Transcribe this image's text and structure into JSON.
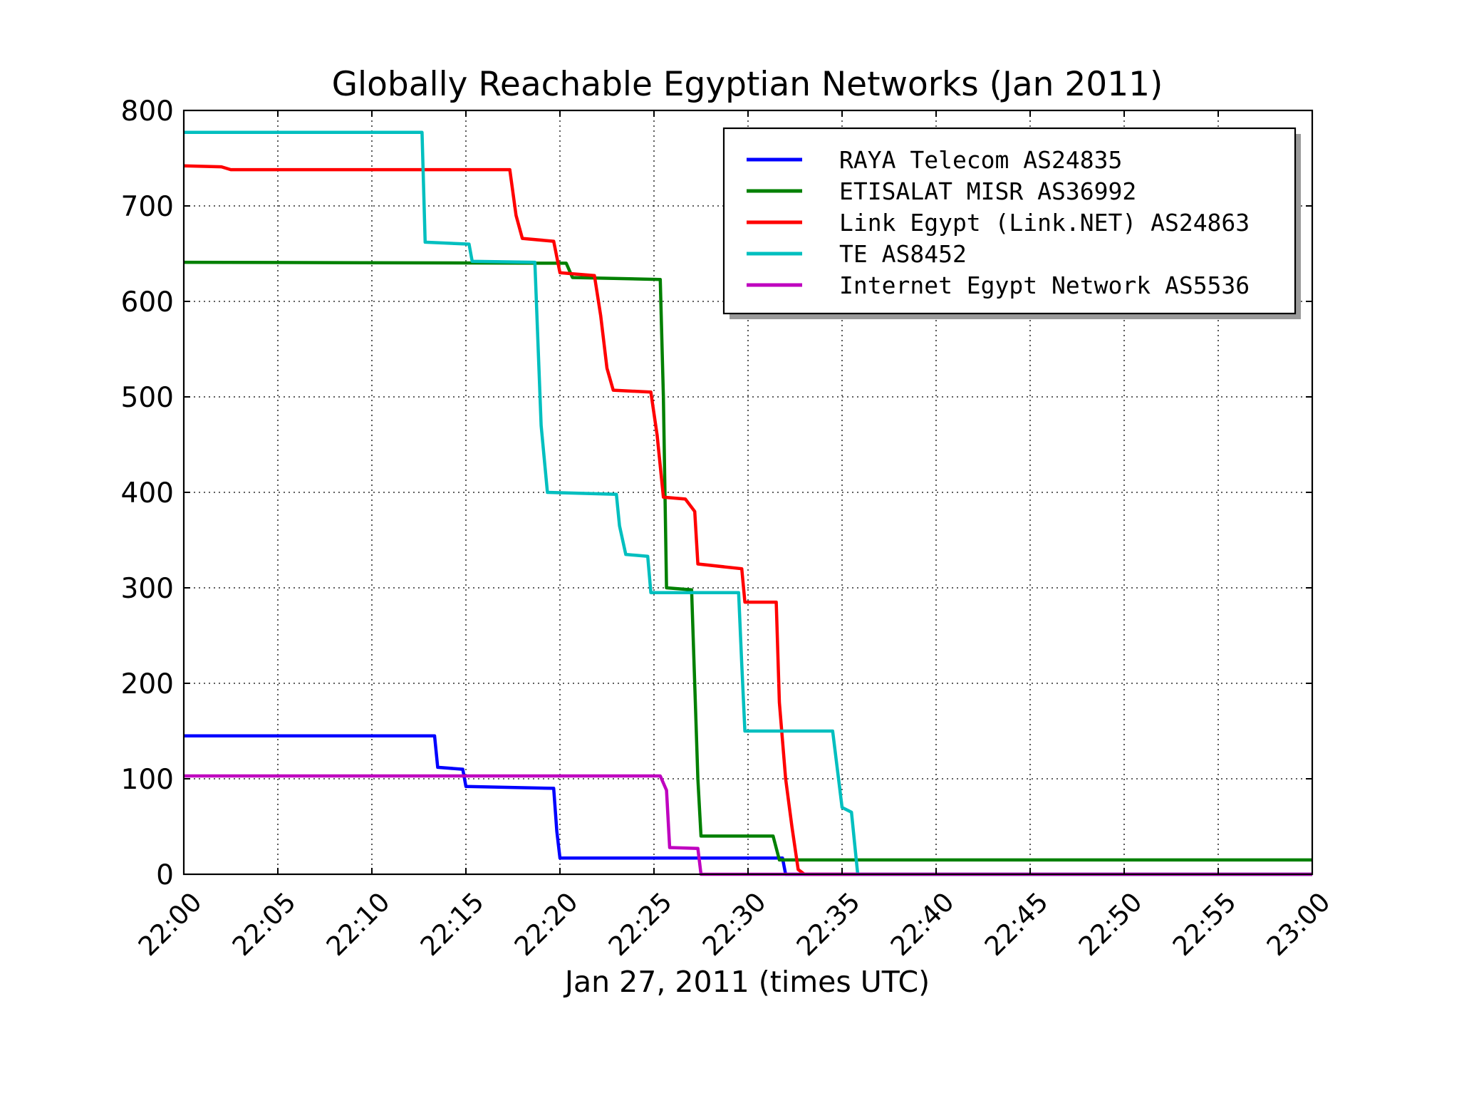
{
  "chart_data": {
    "type": "line",
    "title": "Globally Reachable Egyptian Networks (Jan 2011)",
    "xlabel": "Jan 27, 2011 (times UTC)",
    "ylabel": "",
    "xlim": [
      "22:00",
      "23:00"
    ],
    "ylim": [
      0,
      800
    ],
    "x_ticks": [
      "22:00",
      "22:05",
      "22:10",
      "22:15",
      "22:20",
      "22:25",
      "22:30",
      "22:35",
      "22:40",
      "22:45",
      "22:50",
      "22:55",
      "23:00"
    ],
    "y_ticks": [
      0,
      100,
      200,
      300,
      400,
      500,
      600,
      700,
      800
    ],
    "grid": true,
    "legend_position": "top-right",
    "series": [
      {
        "name": "RAYA Telecom AS24835",
        "color": "#0000ff",
        "points": [
          [
            "22:00",
            145
          ],
          [
            "22:13:20",
            145
          ],
          [
            "22:13:30",
            112
          ],
          [
            "22:14:50",
            110
          ],
          [
            "22:15:00",
            92
          ],
          [
            "22:19:40",
            90
          ],
          [
            "22:19:50",
            45
          ],
          [
            "22:20:00",
            17
          ],
          [
            "22:31:50",
            17
          ],
          [
            "22:32:00",
            0
          ],
          [
            "23:00",
            0
          ]
        ]
      },
      {
        "name": "ETISALAT MISR AS36992",
        "color": "#008000",
        "points": [
          [
            "22:00",
            641
          ],
          [
            "22:20:20",
            640
          ],
          [
            "22:20:40",
            625
          ],
          [
            "22:25:20",
            623
          ],
          [
            "22:25:30",
            500
          ],
          [
            "22:25:40",
            300
          ],
          [
            "22:27:00",
            298
          ],
          [
            "22:27:20",
            100
          ],
          [
            "22:27:30",
            40
          ],
          [
            "22:31:20",
            40
          ],
          [
            "22:31:40",
            15
          ],
          [
            "23:00",
            15
          ]
        ]
      },
      {
        "name": "Link Egypt (Link.NET) AS24863",
        "color": "#ff0000",
        "points": [
          [
            "22:00",
            742
          ],
          [
            "22:02:00",
            741
          ],
          [
            "22:02:30",
            738
          ],
          [
            "22:17:20",
            738
          ],
          [
            "22:17:40",
            690
          ],
          [
            "22:18:00",
            666
          ],
          [
            "22:19:40",
            663
          ],
          [
            "22:20:00",
            630
          ],
          [
            "22:21:50",
            627
          ],
          [
            "22:22:10",
            585
          ],
          [
            "22:22:30",
            530
          ],
          [
            "22:22:50",
            507
          ],
          [
            "22:24:50",
            505
          ],
          [
            "22:25:10",
            460
          ],
          [
            "22:25:30",
            395
          ],
          [
            "22:26:40",
            393
          ],
          [
            "22:27:10",
            380
          ],
          [
            "22:27:20",
            325
          ],
          [
            "22:29:40",
            320
          ],
          [
            "22:29:50",
            285
          ],
          [
            "22:31:30",
            285
          ],
          [
            "22:31:40",
            180
          ],
          [
            "22:32:00",
            100
          ],
          [
            "22:32:20",
            50
          ],
          [
            "22:32:40",
            5
          ],
          [
            "22:33:00",
            0
          ],
          [
            "23:00",
            0
          ]
        ]
      },
      {
        "name": "TE AS8452",
        "color": "#00bfbf",
        "points": [
          [
            "22:00",
            777
          ],
          [
            "22:12:40",
            777
          ],
          [
            "22:12:50",
            662
          ],
          [
            "22:15:10",
            660
          ],
          [
            "22:15:20",
            642
          ],
          [
            "22:18:40",
            641
          ],
          [
            "22:19:00",
            470
          ],
          [
            "22:19:20",
            400
          ],
          [
            "22:23:00",
            398
          ],
          [
            "22:23:10",
            365
          ],
          [
            "22:23:30",
            335
          ],
          [
            "22:24:40",
            333
          ],
          [
            "22:24:50",
            295
          ],
          [
            "22:29:30",
            295
          ],
          [
            "22:29:40",
            220
          ],
          [
            "22:29:50",
            150
          ],
          [
            "22:34:30",
            150
          ],
          [
            "22:35:00",
            70
          ],
          [
            "22:35:30",
            65
          ],
          [
            "22:35:50",
            0
          ],
          [
            "23:00",
            0
          ]
        ]
      },
      {
        "name": "Internet Egypt Network AS5536",
        "color": "#bf00bf",
        "points": [
          [
            "22:00",
            103
          ],
          [
            "22:25:20",
            103
          ],
          [
            "22:25:40",
            88
          ],
          [
            "22:25:50",
            28
          ],
          [
            "22:27:20",
            27
          ],
          [
            "22:27:30",
            0
          ],
          [
            "23:00",
            0
          ]
        ]
      }
    ]
  }
}
